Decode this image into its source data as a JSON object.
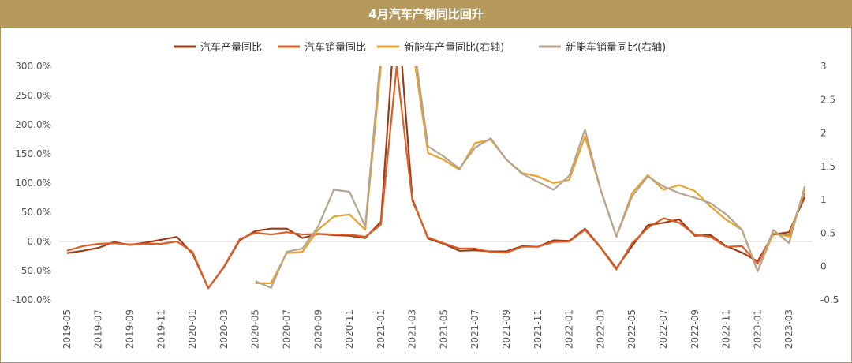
{
  "title": "4月汽车产销同比回升",
  "chart_data": {
    "type": "line",
    "title": "4月汽车产销同比回升",
    "legend_position": "top-center",
    "grid": false,
    "y_left": {
      "min": -100,
      "max": 300,
      "step": 50,
      "suffix": "%",
      "ticks": [
        "300.0%",
        "250.0%",
        "200.0%",
        "150.0%",
        "100.0%",
        "50.0%",
        "0.0%",
        "-50.0%",
        "-100.0%"
      ]
    },
    "y_right": {
      "min": -0.5,
      "max": 3,
      "step": 0.5,
      "ticks": [
        "3",
        "2.5",
        "2",
        "1.5",
        "1",
        "0.5",
        "0",
        "-0.5"
      ]
    },
    "x": [
      "2019-05",
      "2019-06",
      "2019-07",
      "2019-08",
      "2019-09",
      "2019-10",
      "2019-11",
      "2019-12",
      "2020-01",
      "2020-02",
      "2020-03",
      "2020-04",
      "2020-05",
      "2020-06",
      "2020-07",
      "2020-08",
      "2020-09",
      "2020-10",
      "2020-11",
      "2020-12",
      "2021-01",
      "2021-02",
      "2021-03",
      "2021-04",
      "2021-05",
      "2021-06",
      "2021-07",
      "2021-08",
      "2021-09",
      "2021-10",
      "2021-11",
      "2021-12",
      "2022-01",
      "2022-02",
      "2022-03",
      "2022-04",
      "2022-05",
      "2022-06",
      "2022-07",
      "2022-08",
      "2022-09",
      "2022-10",
      "2022-11",
      "2022-12",
      "2023-01",
      "2023-02",
      "2023-03",
      "2023-04"
    ],
    "x_tick_labels": [
      "2019-05",
      "2019-07",
      "2019-09",
      "2019-11",
      "2020-01",
      "2020-03",
      "2020-05",
      "2020-07",
      "2020-09",
      "2020-11",
      "2021-01",
      "2021-03",
      "2021-05",
      "2021-07",
      "2021-09",
      "2021-11",
      "2022-01",
      "2022-03",
      "2022-05",
      "2022-07",
      "2022-09",
      "2022-11",
      "2023-01",
      "2023-03"
    ],
    "series": [
      {
        "name": "汽车产量同比",
        "axis": "left",
        "color": "#9c3b14",
        "values": [
          -20,
          -16,
          -11,
          -1,
          -6,
          -2,
          3,
          8,
          -21,
          -80,
          -44,
          2,
          18,
          22,
          22,
          6,
          13,
          11,
          10,
          6,
          34,
          420,
          73,
          5,
          -4,
          -16,
          -15,
          -17,
          -17,
          -8,
          -9,
          2,
          1,
          22,
          -10,
          -46,
          -8,
          28,
          32,
          38,
          10,
          11,
          -8,
          -19,
          -34,
          12,
          16,
          76
        ]
      },
      {
        "name": "汽车销量同比",
        "axis": "left",
        "color": "#dc5f27",
        "values": [
          -16,
          -8,
          -4,
          -3,
          -5,
          -4,
          -4,
          0,
          -18,
          -80,
          -43,
          4,
          15,
          12,
          16,
          12,
          13,
          12,
          12,
          8,
          29,
          300,
          70,
          7,
          -3,
          -12,
          -12,
          -18,
          -19,
          -9,
          -9,
          -1,
          0,
          20,
          -11,
          -48,
          -3,
          23,
          40,
          32,
          12,
          8,
          -9,
          -8,
          -38,
          13,
          10,
          83
        ]
      },
      {
        "name": "新能车产量同比(右轴)",
        "axis": "right",
        "color": "#e8a12c",
        "values": [
          null,
          null,
          null,
          null,
          null,
          null,
          null,
          null,
          null,
          null,
          null,
          null,
          -0.25,
          -0.25,
          0.2,
          0.22,
          0.55,
          0.75,
          0.78,
          0.55,
          3.0,
          3.3,
          3.3,
          1.7,
          1.6,
          1.45,
          1.85,
          1.9,
          1.6,
          1.4,
          1.35,
          1.25,
          1.3,
          1.95,
          1.15,
          0.45,
          1.1,
          1.37,
          1.15,
          1.22,
          1.13,
          0.9,
          0.7,
          0.55,
          -0.07,
          0.5,
          0.45,
          1.15
        ]
      },
      {
        "name": "新能车销量同比(右轴)",
        "axis": "right",
        "color": "#b5a48e",
        "values": [
          null,
          null,
          null,
          null,
          null,
          null,
          null,
          null,
          null,
          null,
          null,
          null,
          -0.22,
          -0.32,
          0.22,
          0.27,
          0.6,
          1.15,
          1.12,
          0.6,
          3.2,
          3.6,
          3.5,
          1.8,
          1.65,
          1.47,
          1.78,
          1.92,
          1.6,
          1.39,
          1.27,
          1.15,
          1.36,
          2.05,
          1.15,
          0.45,
          1.05,
          1.35,
          1.2,
          1.1,
          1.03,
          0.95,
          0.78,
          0.55,
          -0.07,
          0.55,
          0.35,
          1.2
        ]
      }
    ]
  }
}
